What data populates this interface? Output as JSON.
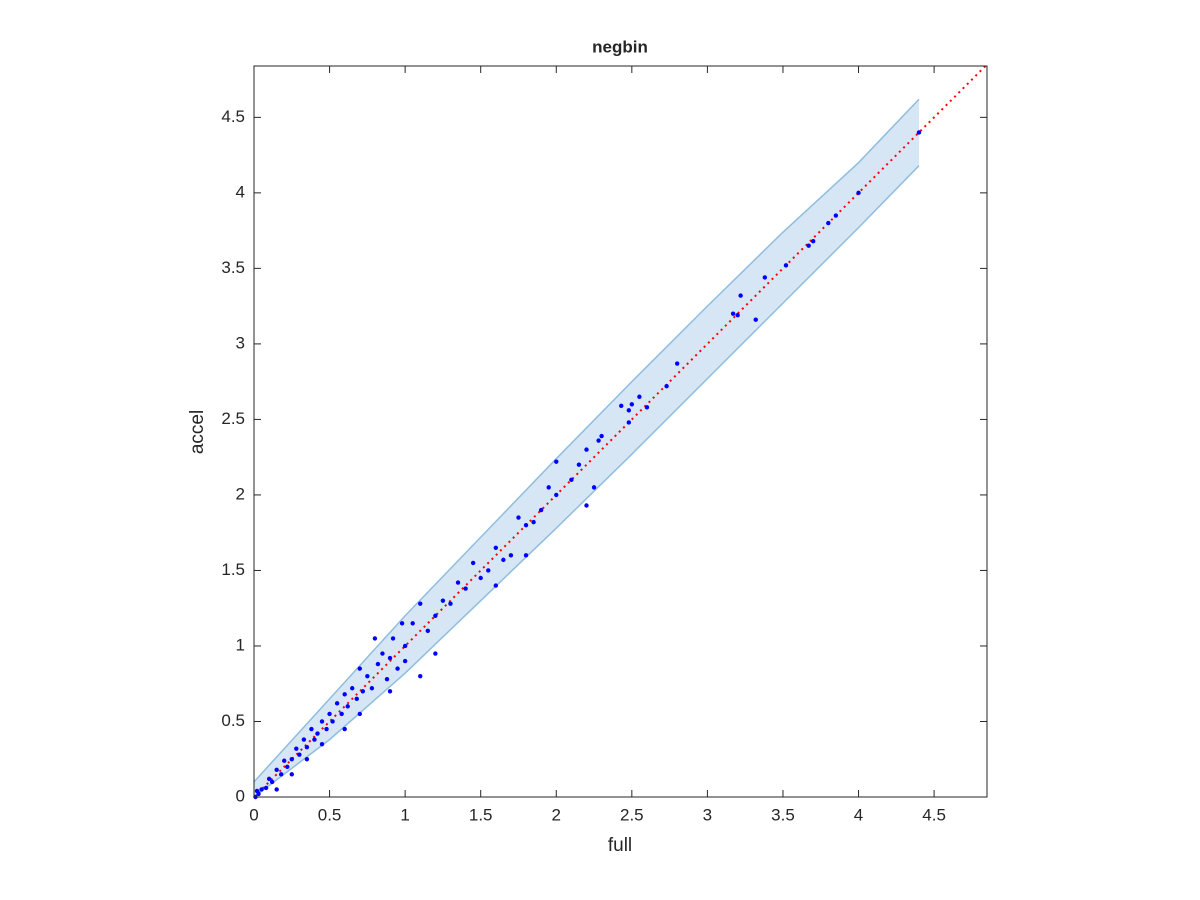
{
  "chart_data": {
    "type": "scatter",
    "title": "negbin",
    "x_label": "full",
    "y_label": "accel",
    "xlim": [
      0,
      4.85
    ],
    "ylim": [
      0,
      4.84
    ],
    "xticks": [
      0,
      0.5,
      1,
      1.5,
      2,
      2.5,
      3,
      3.5,
      4,
      4.5
    ],
    "yticks": [
      0,
      0.5,
      1,
      1.5,
      2,
      2.5,
      3,
      3.5,
      4,
      4.5
    ],
    "band": {
      "color": "#d6e6f4",
      "edge_color": "#8fbde0",
      "x": [
        0,
        0.5,
        1,
        1.5,
        2,
        2.5,
        3,
        3.5,
        4,
        4.4
      ],
      "upper": [
        0.1,
        0.65,
        1.2,
        1.72,
        2.24,
        2.75,
        3.25,
        3.74,
        4.2,
        4.62
      ],
      "lower": [
        0,
        0.38,
        0.82,
        1.3,
        1.78,
        2.27,
        2.77,
        3.27,
        3.77,
        4.18
      ]
    },
    "reference_line": {
      "color": "#ff0000",
      "x": [
        0,
        4.85
      ],
      "y": [
        0,
        4.85
      ]
    },
    "series": [
      {
        "color": "#0000ff",
        "x": [
          4.4,
          4.0,
          3.85,
          3.8,
          3.7,
          3.67,
          3.52,
          3.38,
          3.32,
          3.22,
          3.2,
          3.17,
          2.8,
          2.73,
          2.6,
          2.55,
          2.5,
          2.48,
          2.43,
          2.48,
          2.25,
          2.2,
          2.3,
          2.28,
          2.2,
          2.15,
          2.1,
          2.0,
          2.0,
          1.95,
          1.9,
          1.85,
          1.8,
          1.75,
          1.7,
          1.65,
          1.6,
          1.55,
          1.5,
          1.45,
          1.4,
          1.35,
          1.3,
          1.25,
          1.2,
          1.15,
          1.1,
          1.05,
          1.0,
          1.0,
          0.98,
          0.95,
          0.92,
          0.9,
          0.88,
          0.85,
          0.82,
          0.8,
          0.78,
          0.75,
          0.72,
          0.7,
          0.68,
          0.65,
          0.62,
          0.6,
          0.58,
          0.55,
          0.52,
          0.5,
          0.48,
          0.45,
          0.42,
          0.4,
          0.38,
          0.35,
          0.33,
          0.3,
          0.28,
          0.25,
          0.22,
          0.2,
          0.18,
          0.15,
          0.12,
          0.1,
          0.08,
          0.05,
          0.03,
          0.02,
          0.01,
          0.15,
          0.25,
          0.35,
          0.6,
          0.45,
          1.2,
          1.1,
          0.9,
          1.6,
          1.8,
          0.7
        ],
        "y": [
          4.4,
          4.0,
          3.85,
          3.8,
          3.68,
          3.65,
          3.52,
          3.44,
          3.16,
          3.32,
          3.19,
          3.2,
          2.87,
          2.72,
          2.58,
          2.65,
          2.6,
          2.56,
          2.59,
          2.48,
          2.05,
          1.93,
          2.39,
          2.36,
          2.3,
          2.2,
          2.1,
          2.22,
          2.0,
          2.05,
          1.9,
          1.82,
          1.8,
          1.85,
          1.6,
          1.57,
          1.65,
          1.5,
          1.45,
          1.55,
          1.38,
          1.42,
          1.28,
          1.3,
          1.2,
          1.1,
          1.28,
          1.15,
          1.0,
          0.9,
          1.15,
          0.85,
          1.05,
          0.92,
          0.78,
          0.95,
          0.88,
          1.05,
          0.72,
          0.8,
          0.7,
          0.85,
          0.65,
          0.72,
          0.6,
          0.68,
          0.55,
          0.62,
          0.5,
          0.55,
          0.45,
          0.5,
          0.42,
          0.38,
          0.45,
          0.33,
          0.38,
          0.28,
          0.32,
          0.25,
          0.2,
          0.24,
          0.15,
          0.18,
          0.1,
          0.12,
          0.06,
          0.05,
          0.02,
          0.04,
          0.0,
          0.05,
          0.15,
          0.25,
          0.45,
          0.35,
          0.95,
          0.8,
          0.7,
          1.4,
          1.6,
          0.55
        ]
      }
    ]
  }
}
